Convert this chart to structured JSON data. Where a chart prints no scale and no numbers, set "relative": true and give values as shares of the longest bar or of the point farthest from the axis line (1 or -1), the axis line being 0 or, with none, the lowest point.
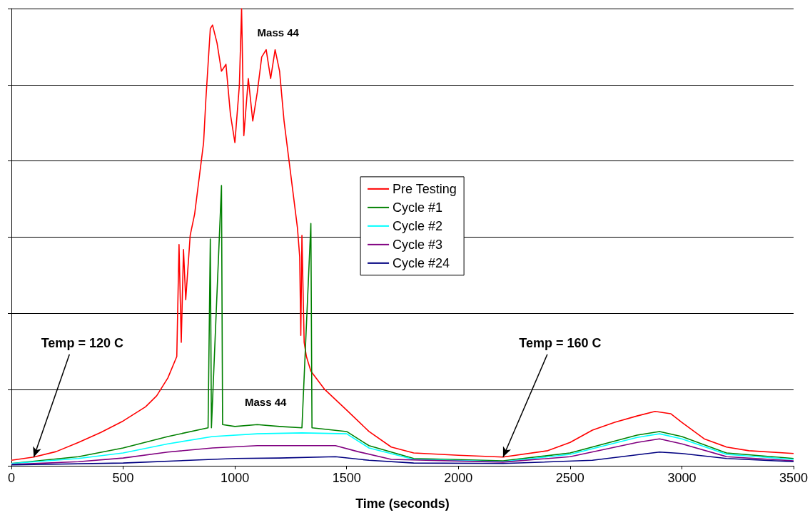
{
  "chart_data": {
    "type": "line",
    "relative": true,
    "xlabel": "Time (seconds)",
    "xlim": [
      0,
      3500
    ],
    "xticks": [
      0,
      500,
      1000,
      1500,
      2000,
      2500,
      3000,
      3500
    ],
    "grid": "y",
    "legend": "center",
    "tick_labels": "x",
    "marker": "none",
    "line_style": "solid",
    "annotations": [
      "Mass 44",
      "Mass 44",
      {
        "text": "Temp = 120 C",
        "x": 100,
        "y": 0.019
      },
      {
        "text": "Temp = 160 C",
        "x": 2200,
        "y": 0.019
      }
    ],
    "series": [
      {
        "name": "Pre Testing",
        "color": "#ff0000",
        "x": [
          0,
          100,
          200,
          300,
          400,
          500,
          600,
          650,
          700,
          740,
          750,
          760,
          770,
          780,
          800,
          820,
          840,
          860,
          870,
          880,
          890,
          900,
          920,
          940,
          960,
          980,
          1000,
          1020,
          1030,
          1040,
          1060,
          1080,
          1100,
          1120,
          1140,
          1160,
          1180,
          1200,
          1220,
          1240,
          1260,
          1280,
          1290,
          1295,
          1300,
          1310,
          1320,
          1340,
          1400,
          1500,
          1600,
          1700,
          1800,
          2000,
          2200,
          2400,
          2500,
          2600,
          2700,
          2800,
          2880,
          2950,
          3000,
          3100,
          3200,
          3300,
          3500
        ],
        "values": [
          0.012,
          0.019,
          0.031,
          0.051,
          0.073,
          0.098,
          0.129,
          0.153,
          0.192,
          0.239,
          0.484,
          0.27,
          0.473,
          0.363,
          0.504,
          0.551,
          0.629,
          0.707,
          0.8,
          0.878,
          0.956,
          0.964,
          0.925,
          0.863,
          0.878,
          0.769,
          0.707,
          0.832,
          1,
          0.722,
          0.847,
          0.754,
          0.816,
          0.894,
          0.91,
          0.847,
          0.91,
          0.863,
          0.754,
          0.676,
          0.598,
          0.52,
          0.457,
          0.285,
          0.504,
          0.27,
          0.239,
          0.207,
          0.168,
          0.122,
          0.075,
          0.041,
          0.028,
          0.023,
          0.019,
          0.033,
          0.051,
          0.078,
          0.095,
          0.109,
          0.119,
          0.114,
          0.095,
          0.059,
          0.041,
          0.033,
          0.027
        ]
      },
      {
        "name": "Cycle #1",
        "color": "#008000",
        "x": [
          0,
          300,
          500,
          700,
          880,
          890,
          895,
          940,
          945,
          1000,
          1100,
          1200,
          1300,
          1340,
          1345,
          1500,
          1600,
          1800,
          2200,
          2500,
          2800,
          2900,
          3000,
          3200,
          3500
        ],
        "values": [
          0.005,
          0.02,
          0.039,
          0.064,
          0.083,
          0.496,
          0.083,
          0.613,
          0.09,
          0.086,
          0.09,
          0.086,
          0.083,
          0.53,
          0.083,
          0.075,
          0.044,
          0.016,
          0.011,
          0.028,
          0.067,
          0.075,
          0.064,
          0.028,
          0.016
        ]
      },
      {
        "name": "Cycle #2",
        "color": "#00ffff",
        "x": [
          0,
          300,
          500,
          700,
          900,
          1100,
          1300,
          1500,
          1600,
          1800,
          2200,
          2500,
          2800,
          2900,
          3000,
          3200,
          3500
        ],
        "values": [
          0.005,
          0.016,
          0.028,
          0.048,
          0.064,
          0.07,
          0.072,
          0.07,
          0.039,
          0.014,
          0.009,
          0.025,
          0.062,
          0.07,
          0.059,
          0.025,
          0.014
        ]
      },
      {
        "name": "Cycle #3",
        "color": "#800080",
        "x": [
          0,
          300,
          500,
          700,
          900,
          1100,
          1300,
          1450,
          1550,
          1700,
          2200,
          2500,
          2800,
          2900,
          3000,
          3200,
          3500
        ],
        "values": [
          0.003,
          0.009,
          0.017,
          0.03,
          0.039,
          0.044,
          0.044,
          0.044,
          0.031,
          0.014,
          0.008,
          0.02,
          0.051,
          0.059,
          0.048,
          0.02,
          0.011
        ]
      },
      {
        "name": "Cycle #24",
        "color": "#000080",
        "x": [
          0,
          500,
          800,
          1000,
          1200,
          1450,
          1600,
          1800,
          2200,
          2600,
          2900,
          3000,
          3200,
          3500
        ],
        "values": [
          0.002,
          0.006,
          0.012,
          0.016,
          0.017,
          0.02,
          0.012,
          0.006,
          0.005,
          0.012,
          0.03,
          0.027,
          0.016,
          0.009
        ]
      }
    ]
  }
}
